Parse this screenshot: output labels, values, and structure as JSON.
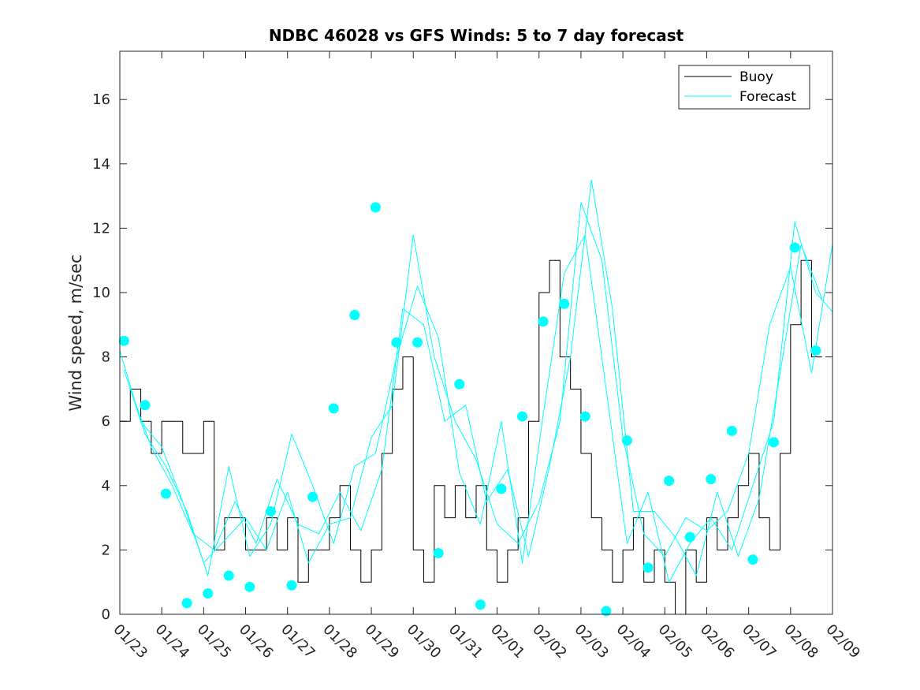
{
  "chart_data": {
    "type": "line",
    "title": "NDBC 46028 vs GFS Winds: 5 to 7 day forecast",
    "xlabel": "",
    "ylabel": "Wind speed, m/sec",
    "xlim": [
      0,
      17
    ],
    "ylim": [
      0,
      17.5
    ],
    "x_tick_labels": [
      "01/23",
      "01/24",
      "01/25",
      "01/26",
      "01/27",
      "01/28",
      "01/29",
      "01/30",
      "01/31",
      "02/01",
      "02/02",
      "02/03",
      "02/04",
      "02/05",
      "02/06",
      "02/07",
      "02/08",
      "02/09"
    ],
    "y_ticks": [
      0,
      2,
      4,
      6,
      8,
      10,
      12,
      14,
      16
    ],
    "legend": {
      "position": "top-right",
      "entries": [
        "Buoy",
        "Forecast"
      ]
    },
    "colors": {
      "buoy": "#000000",
      "forecast": "#00FFFF",
      "axes": "#262626"
    },
    "series": [
      {
        "name": "Buoy",
        "x": [
          0.0,
          0.25,
          0.5,
          0.75,
          1.0,
          1.25,
          1.5,
          1.75,
          2.0,
          2.25,
          2.5,
          2.75,
          3.0,
          3.25,
          3.5,
          3.75,
          4.0,
          4.25,
          4.5,
          4.75,
          5.0,
          5.25,
          5.5,
          5.75,
          6.0,
          6.25,
          6.5,
          6.75,
          7.0,
          7.25,
          7.5,
          7.75,
          8.0,
          8.25,
          8.5,
          8.75,
          9.0,
          9.25,
          9.5,
          9.75,
          10.0,
          10.25,
          10.5,
          10.75,
          11.0,
          11.25,
          11.5,
          11.75,
          12.0,
          12.25,
          12.5,
          12.75,
          13.0,
          13.25,
          13.5,
          13.75,
          14.0,
          14.25,
          14.5,
          14.75,
          15.0,
          15.25,
          15.5,
          15.75,
          16.0,
          16.25,
          16.5
        ],
        "y": [
          6,
          7,
          6,
          5,
          6,
          6,
          5,
          5,
          6,
          2,
          3,
          3,
          2,
          2,
          3,
          2,
          3,
          1,
          2,
          2,
          3,
          4,
          2,
          1,
          2,
          5,
          7,
          8,
          2,
          1,
          4,
          3,
          4,
          3,
          4,
          2,
          1,
          2,
          3,
          6,
          10,
          11,
          8,
          7,
          5,
          3,
          2,
          1,
          2,
          3,
          1,
          2,
          1,
          0,
          2,
          1,
          3,
          2,
          3,
          4,
          5,
          3,
          2,
          5,
          9,
          11,
          8
        ]
      },
      {
        "name": "Forecast",
        "x": [
          0.0,
          0.5,
          1.0,
          1.5,
          2.0,
          2.5,
          3.0,
          3.5,
          4.0,
          4.5,
          5.0,
          5.5,
          6.0,
          6.5,
          7.0,
          7.5,
          8.0,
          8.5,
          9.0,
          9.5,
          10.0,
          10.5,
          11.0,
          11.5,
          12.0,
          12.5,
          13.0,
          13.5,
          14.0,
          14.5,
          15.0,
          15.5,
          16.0,
          16.5,
          17.0
        ],
        "y": [
          8.2,
          6.0,
          5.2,
          3.5,
          1.6,
          2.3,
          3.0,
          2.0,
          3.8,
          1.6,
          2.8,
          3.0,
          5.5,
          6.5,
          11.8,
          8.0,
          6.0,
          4.8,
          2.8,
          2.2,
          3.5,
          6.0,
          12.8,
          11.0,
          5.5,
          2.5,
          1.8,
          3.0,
          2.6,
          3.2,
          5.0,
          9.0,
          10.8,
          7.5,
          11.5
        ]
      },
      {
        "name": "Forecast",
        "x": [
          0.25,
          0.75,
          1.25,
          1.75,
          2.25,
          2.75,
          3.25,
          3.75,
          4.25,
          4.75,
          5.25,
          5.75,
          6.25,
          6.75,
          7.25,
          7.75,
          8.25,
          8.75,
          9.25,
          9.75,
          10.25,
          10.75,
          11.25,
          11.75,
          12.25,
          12.75,
          13.25,
          13.75,
          14.25,
          14.75,
          15.25,
          15.75,
          16.25,
          16.75
        ],
        "y": [
          7.0,
          5.2,
          4.0,
          2.5,
          2.0,
          3.5,
          2.2,
          4.2,
          2.8,
          2.5,
          3.8,
          2.6,
          4.5,
          9.5,
          9.0,
          6.0,
          6.5,
          3.5,
          4.5,
          1.8,
          4.6,
          8.0,
          13.5,
          9.5,
          3.2,
          3.2,
          2.4,
          1.2,
          3.8,
          1.8,
          3.6,
          7.5,
          11.5,
          9.8
        ]
      },
      {
        "name": "Forecast",
        "x": [
          0.1,
          0.6,
          1.1,
          1.6,
          2.1,
          2.6,
          3.1,
          3.6,
          4.1,
          4.6,
          5.1,
          5.6,
          6.1,
          6.6,
          7.1,
          7.6,
          8.1,
          8.6,
          9.1,
          9.6,
          10.1,
          10.6,
          11.1,
          11.6,
          12.1,
          12.6,
          13.1,
          13.6,
          14.1,
          14.6,
          15.1,
          15.6,
          16.1,
          16.6,
          17.0
        ],
        "y": [
          7.6,
          5.6,
          4.6,
          3.2,
          1.2,
          4.6,
          1.8,
          2.8,
          5.6,
          4.0,
          2.2,
          4.6,
          5.0,
          8.0,
          10.2,
          8.6,
          4.4,
          2.8,
          6.0,
          1.6,
          6.2,
          10.6,
          11.8,
          7.0,
          2.2,
          3.8,
          1.0,
          2.2,
          3.0,
          2.0,
          4.0,
          6.0,
          12.2,
          10.0,
          9.4
        ]
      }
    ],
    "forecast_markers": {
      "x": [
        0.1,
        0.6,
        1.1,
        1.6,
        2.1,
        2.6,
        3.1,
        3.6,
        4.1,
        4.6,
        5.1,
        5.6,
        6.1,
        6.6,
        7.1,
        7.6,
        8.1,
        8.6,
        9.1,
        9.6,
        10.1,
        10.6,
        11.1,
        11.6,
        12.1,
        12.6,
        13.1,
        13.6,
        14.1,
        14.6,
        15.1,
        15.6,
        16.1,
        16.6
      ],
      "y": [
        8.5,
        6.5,
        3.75,
        0.35,
        0.65,
        1.2,
        0.85,
        3.2,
        0.9,
        3.65,
        6.4,
        9.3,
        12.65,
        8.45,
        8.45,
        1.9,
        7.15,
        0.3,
        3.9,
        6.15,
        9.1,
        9.65,
        6.15,
        0.1,
        5.4,
        1.45,
        4.15,
        2.4,
        4.2,
        5.7,
        1.7,
        5.35,
        11.4,
        8.2
      ]
    }
  }
}
